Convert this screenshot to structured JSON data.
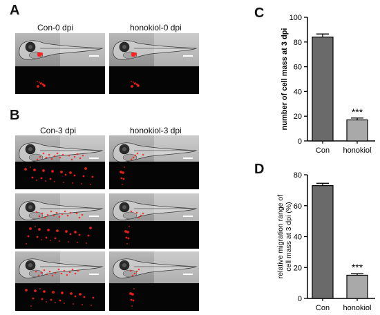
{
  "panels": {
    "a_letter": "A",
    "b_letter": "B",
    "c_letter": "C",
    "d_letter": "D"
  },
  "panelA": {
    "captions": [
      "Con-0 dpi",
      "honokiol-0 dpi"
    ]
  },
  "panelB": {
    "captions": [
      "Con-3 dpi",
      "honokiol-3 dpi"
    ]
  },
  "colors": {
    "con_bar": "#6a6a6a",
    "honokiol_bar": "#a9a9a9",
    "tumor_red": "#ff2020"
  },
  "chart_data": [
    {
      "type": "bar",
      "panel": "C",
      "categories": [
        "Con",
        "honokiol"
      ],
      "values": [
        84,
        17
      ],
      "errors": [
        2.5,
        1.5
      ],
      "ylabel": "number of cell mass at 3 dpi",
      "ylim": [
        0,
        100
      ],
      "yticks": [
        0,
        20,
        40,
        60,
        80,
        100
      ],
      "significance": [
        "",
        "***"
      ]
    },
    {
      "type": "bar",
      "panel": "D",
      "categories": [
        "Con",
        "honokiol"
      ],
      "values": [
        73,
        15
      ],
      "errors": [
        1.5,
        1.0
      ],
      "ylabel": "relative migration range of cell mass at 3 dpi (%)",
      "ylim": [
        0,
        80
      ],
      "yticks": [
        0,
        20,
        40,
        60,
        80
      ],
      "significance": [
        "",
        "***"
      ]
    }
  ]
}
